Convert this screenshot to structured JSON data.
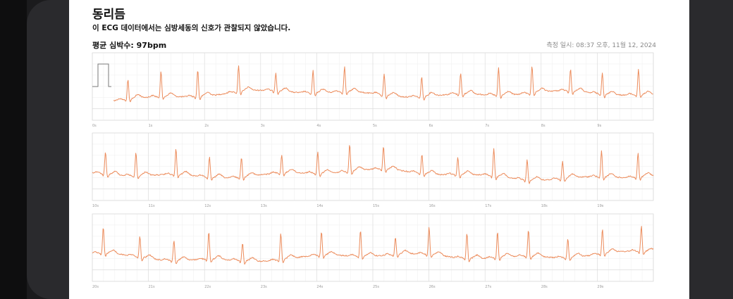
{
  "report": {
    "title": "동리듬",
    "subtitle": "이 ECG 데이터에서는 심방세동의 신호가 관찰되지 않았습니다.",
    "avg_hr": "평균 심박수: 97bpm",
    "measured_at": "측정 일시: 08:37 오후, 11월 12, 2024"
  },
  "colors": {
    "trace": "#ec8c5c",
    "grid_minor": "#eeeeee",
    "grid_major": "#d9d9d9"
  },
  "strips": [
    {
      "ticks": [
        "0s",
        "1s",
        "2s",
        "3s",
        "4s",
        "5s",
        "6s",
        "7s",
        "8s",
        "9s"
      ]
    },
    {
      "ticks": [
        "10s",
        "11s",
        "12s",
        "13s",
        "14s",
        "15s",
        "16s",
        "17s",
        "18s",
        "19s"
      ]
    },
    {
      "ticks": [
        "20s",
        "21s",
        "22s",
        "23s",
        "24s",
        "25s",
        "26s",
        "27s",
        "28s",
        "29s"
      ]
    }
  ]
}
